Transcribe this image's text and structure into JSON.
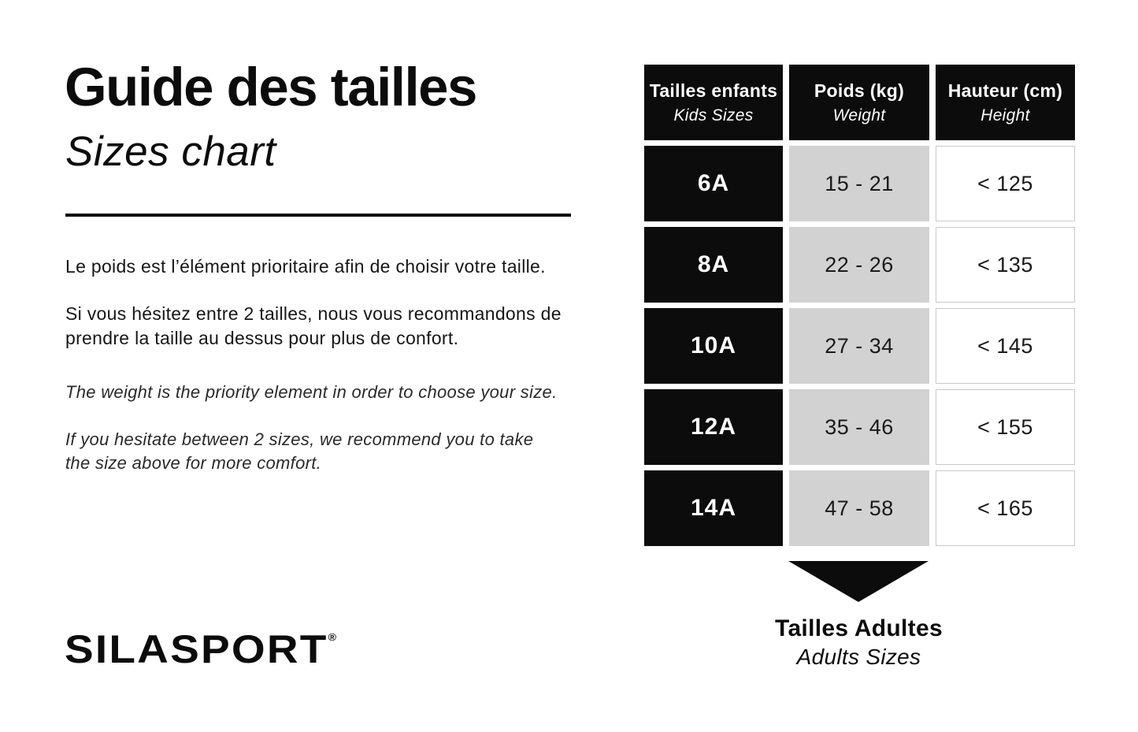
{
  "header": {
    "title_fr": "Guide des tailles",
    "title_en": "Sizes chart"
  },
  "intro": {
    "fr_1": "Le poids est l’élément prioritaire afin de choisir votre taille.",
    "fr_2": "Si vous hésitez entre 2 tailles, nous vous recommandons de prendre la taille au dessus pour plus de confort.",
    "en_1": "The weight is the priority element in order to choose your size.",
    "en_2": "If you hesitate between 2 sizes, we recommend you to take the size above for more comfort."
  },
  "chart_data": {
    "type": "table",
    "headers": [
      {
        "fr": "Tailles enfants",
        "en": "Kids Sizes"
      },
      {
        "fr": "Poids (kg)",
        "en": "Weight"
      },
      {
        "fr": "Hauteur (cm)",
        "en": "Height"
      }
    ],
    "rows": [
      {
        "size": "6A",
        "weight": "15 - 21",
        "height": "< 125"
      },
      {
        "size": "8A",
        "weight": "22 - 26",
        "height": "< 135"
      },
      {
        "size": "10A",
        "weight": "27 - 34",
        "height": "< 145"
      },
      {
        "size": "12A",
        "weight": "35 - 46",
        "height": "< 155"
      },
      {
        "size": "14A",
        "weight": "47 - 58",
        "height": "< 165"
      }
    ]
  },
  "footer": {
    "adults_fr": "Tailles Adultes",
    "adults_en": "Adults Sizes"
  },
  "brand": {
    "logo_text": "SILASPORT",
    "registered_mark": "®"
  },
  "colors": {
    "black": "#0c0c0c",
    "gray_cell": "#d2d2d2",
    "white": "#ffffff",
    "cell_border": "#c9c9c9"
  }
}
